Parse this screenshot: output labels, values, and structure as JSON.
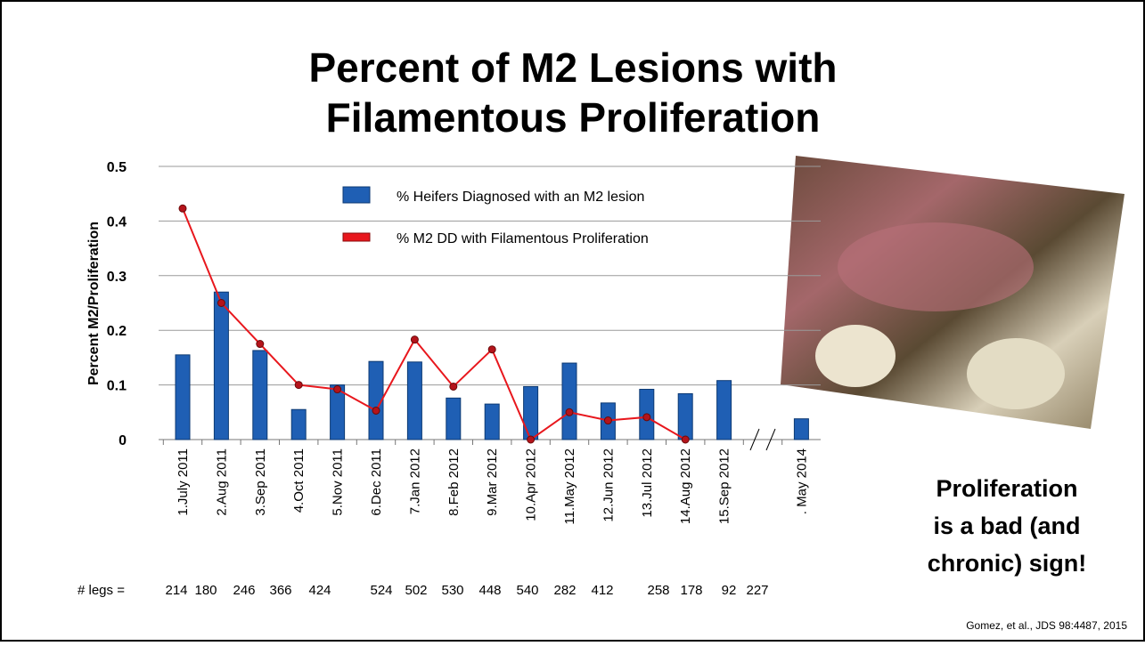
{
  "slide": {
    "title": [
      "Percent of M2 Lesions with",
      "Filamentous Proliferation"
    ],
    "callout": [
      "Proliferation",
      "is a bad (and",
      "chronic) sign!"
    ],
    "citation": "Gomez, et al., JDS 98:4487, 2015"
  },
  "chart_data": {
    "type": "bar",
    "y_label": "Percent M2/Proliferation",
    "categories": [
      "1.July 2011",
      "2.Aug 2011",
      "3.Sep 2011",
      "4.Oct 2011",
      "5.Nov 2011",
      "6.Dec 2011",
      "7.Jan 2012",
      "8.Feb 2012",
      "9.Mar 2012",
      "10.Apr 2012",
      "11.May 2012",
      "12.Jun 2012",
      "13.Jul 2012",
      "14.Aug 2012",
      "15.Sep 2012",
      null,
      ". May 2014"
    ],
    "series": [
      {
        "name": "% Heifers Diagnosed with an M2 lesion",
        "type": "bar",
        "color": "#1f5fb4",
        "values": [
          0.155,
          0.27,
          0.163,
          0.055,
          0.1,
          0.143,
          0.142,
          0.076,
          0.065,
          0.097,
          0.14,
          0.067,
          0.092,
          0.084,
          0.108,
          null,
          0.038
        ]
      },
      {
        "name": "% M2 DD with Filamentous Proliferation",
        "type": "line",
        "color": "#e8171d",
        "values": [
          0.423,
          0.25,
          0.175,
          0.1,
          0.092,
          0.053,
          0.183,
          0.097,
          0.165,
          0,
          0.05,
          0.035,
          0.041,
          0,
          null,
          null,
          null
        ]
      }
    ],
    "ylim": [
      0,
      0.5
    ],
    "yticks": [
      0,
      0.1,
      0.2,
      0.3,
      0.4,
      0.5
    ],
    "grid": true,
    "legs_label": "# legs =",
    "legs": [
      214,
      180,
      246,
      366,
      424,
      524,
      502,
      530,
      448,
      540,
      282,
      412,
      258,
      178,
      92,
      227
    ]
  }
}
